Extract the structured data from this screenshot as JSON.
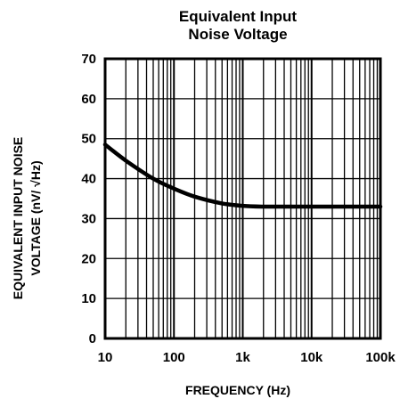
{
  "chart_data": {
    "type": "line",
    "title": "Equivalent Input Noise Voltage",
    "title_lines": [
      "Equivalent Input",
      "Noise Voltage"
    ],
    "xlabel": "FREQUENCY (Hz)",
    "ylabel_lines": [
      "EQUIVALENT INPUT NOISE",
      "VOLTAGE (nV/ √Hz)"
    ],
    "xscale": "log",
    "xlim": [
      10,
      100000
    ],
    "ylim": [
      0,
      70
    ],
    "grid": true,
    "x_tick_labels": [
      "10",
      "100",
      "1k",
      "10k",
      "100k"
    ],
    "y_tick_labels": [
      "0",
      "10",
      "20",
      "30",
      "40",
      "50",
      "60",
      "70"
    ],
    "series": [
      {
        "x": [
          10,
          20,
          50,
          100,
          200,
          500,
          1000,
          2000,
          5000,
          10000,
          100000
        ],
        "values": [
          48.5,
          44.5,
          40,
          37.5,
          35.5,
          33.8,
          33.2,
          33,
          33,
          33,
          33
        ]
      }
    ]
  }
}
